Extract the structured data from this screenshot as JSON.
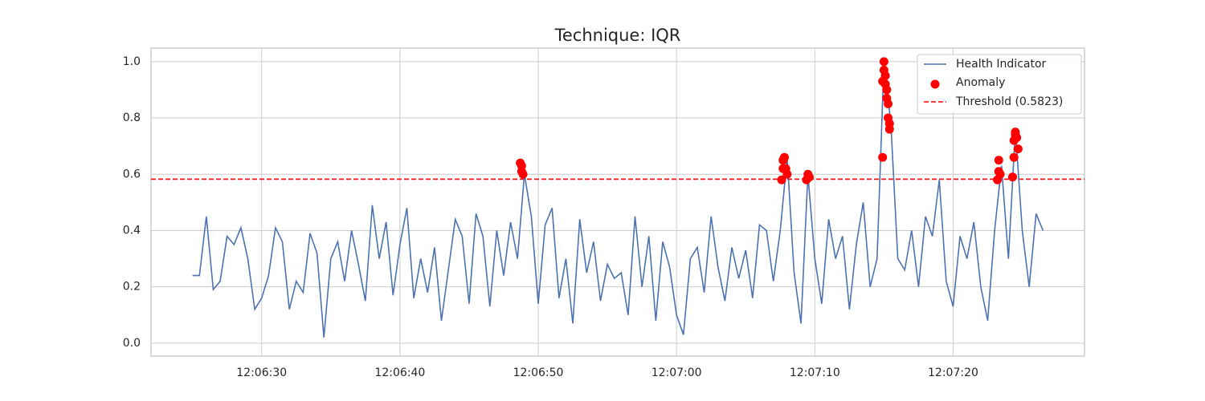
{
  "chart_data": {
    "type": "line",
    "title": "Technique: IQR",
    "xlim": [
      "12:06:22.0",
      "12:07:29.5"
    ],
    "xticks": [
      "12:06:30",
      "12:06:40",
      "12:06:50",
      "12:07:00",
      "12:07:10",
      "12:07:20"
    ],
    "ylim": [
      -0.046,
      1.048
    ],
    "yticks": [
      {
        "value": 0,
        "label": "0.0"
      },
      {
        "value": 0.2,
        "label": "0.2"
      },
      {
        "value": 0.4,
        "label": "0.4"
      },
      {
        "value": 0.6,
        "label": "0.6"
      },
      {
        "value": 0.8,
        "label": "0.8"
      },
      {
        "value": 1,
        "label": "1.0"
      }
    ],
    "grid": true,
    "legend": "upper right",
    "series": [
      {
        "name": "Health Indicator",
        "type": "line",
        "color": "#4c72b0",
        "x": [
          "12:06:25.0",
          "12:06:25.5",
          "12:06:26.0",
          "12:06:26.5",
          "12:06:27.0",
          "12:06:27.5",
          "12:06:28.0",
          "12:06:28.5",
          "12:06:29.0",
          "12:06:29.5",
          "12:06:30.0",
          "12:06:30.5",
          "12:06:31.0",
          "12:06:31.5",
          "12:06:32.0",
          "12:06:32.5",
          "12:06:33.0",
          "12:06:33.5",
          "12:06:34.0",
          "12:06:34.5",
          "12:06:35.0",
          "12:06:35.5",
          "12:06:36.0",
          "12:06:36.5",
          "12:06:37.0",
          "12:06:37.5",
          "12:06:38.0",
          "12:06:38.5",
          "12:06:39.0",
          "12:06:39.5",
          "12:06:40.0",
          "12:06:40.5",
          "12:06:41.0",
          "12:06:41.5",
          "12:06:42.0",
          "12:06:42.5",
          "12:06:43.0",
          "12:06:43.5",
          "12:06:44.0",
          "12:06:44.5",
          "12:06:45.0",
          "12:06:45.5",
          "12:06:46.0",
          "12:06:46.5",
          "12:06:47.0",
          "12:06:47.5",
          "12:06:48.0",
          "12:06:48.5",
          "12:06:49.0",
          "12:06:49.5",
          "12:06:50.0",
          "12:06:50.5",
          "12:06:51.0",
          "12:06:51.5",
          "12:06:52.0",
          "12:06:52.5",
          "12:06:53.0",
          "12:06:53.5",
          "12:06:54.0",
          "12:06:54.5",
          "12:06:55.0",
          "12:06:55.5",
          "12:06:56.0",
          "12:06:56.5",
          "12:06:57.0",
          "12:06:57.5",
          "12:06:58.0",
          "12:06:58.5",
          "12:06:59.0",
          "12:06:59.5",
          "12:07:00.0",
          "12:07:00.5",
          "12:07:01.0",
          "12:07:01.5",
          "12:07:02.0",
          "12:07:02.5",
          "12:07:03.0",
          "12:07:03.5",
          "12:07:04.0",
          "12:07:04.5",
          "12:07:05.0",
          "12:07:05.5",
          "12:07:06.0",
          "12:07:06.5",
          "12:07:07.0",
          "12:07:07.5",
          "12:07:08.0",
          "12:07:08.5",
          "12:07:09.0",
          "12:07:09.5",
          "12:07:10.0",
          "12:07:10.5",
          "12:07:11.0",
          "12:07:11.5",
          "12:07:12.0",
          "12:07:12.5",
          "12:07:13.0",
          "12:07:13.5",
          "12:07:14.0",
          "12:07:14.5",
          "12:07:15.0",
          "12:07:15.5",
          "12:07:16.0",
          "12:07:16.5",
          "12:07:17.0",
          "12:07:17.5",
          "12:07:18.0",
          "12:07:18.5",
          "12:07:19.0",
          "12:07:19.5",
          "12:07:20.0",
          "12:07:20.5",
          "12:07:21.0",
          "12:07:21.5",
          "12:07:22.0",
          "12:07:22.5",
          "12:07:23.0",
          "12:07:23.5",
          "12:07:24.0",
          "12:07:24.5",
          "12:07:25.0",
          "12:07:25.5",
          "12:07:26.0",
          "12:07:26.5"
        ],
        "values": [
          0.24,
          0.24,
          0.45,
          0.19,
          0.22,
          0.38,
          0.35,
          0.41,
          0.3,
          0.12,
          0.16,
          0.24,
          0.41,
          0.36,
          0.12,
          0.22,
          0.18,
          0.39,
          0.32,
          0.02,
          0.3,
          0.36,
          0.22,
          0.4,
          0.28,
          0.15,
          0.49,
          0.3,
          0.43,
          0.17,
          0.35,
          0.48,
          0.16,
          0.3,
          0.18,
          0.34,
          0.08,
          0.26,
          0.44,
          0.38,
          0.14,
          0.46,
          0.38,
          0.13,
          0.4,
          0.24,
          0.43,
          0.3,
          0.6,
          0.45,
          0.14,
          0.42,
          0.48,
          0.16,
          0.3,
          0.07,
          0.44,
          0.25,
          0.36,
          0.15,
          0.28,
          0.23,
          0.25,
          0.1,
          0.45,
          0.2,
          0.38,
          0.08,
          0.36,
          0.27,
          0.1,
          0.03,
          0.3,
          0.34,
          0.18,
          0.45,
          0.27,
          0.15,
          0.34,
          0.23,
          0.33,
          0.16,
          0.42,
          0.4,
          0.22,
          0.4,
          0.66,
          0.25,
          0.07,
          0.6,
          0.3,
          0.14,
          0.44,
          0.3,
          0.38,
          0.12,
          0.35,
          0.5,
          0.2,
          0.3,
          1.0,
          0.78,
          0.3,
          0.26,
          0.4,
          0.2,
          0.45,
          0.38,
          0.58,
          0.22,
          0.13,
          0.38,
          0.3,
          0.43,
          0.2,
          0.08,
          0.4,
          0.63,
          0.3,
          0.76,
          0.4,
          0.2,
          0.46,
          0.4
        ]
      },
      {
        "name": "Anomaly",
        "type": "scatter",
        "color": "#ff0000",
        "x": [
          "12:06:48.7",
          "12:06:48.8",
          "12:06:48.8",
          "12:06:48.9",
          "12:07:07.6",
          "12:07:07.7",
          "12:07:07.7",
          "12:07:07.8",
          "12:07:07.9",
          "12:07:08.0",
          "12:07:09.4",
          "12:07:09.5",
          "12:07:09.6",
          "12:07:14.9",
          "12:07:14.9",
          "12:07:15.0",
          "12:07:15.0",
          "12:07:15.1",
          "12:07:15.1",
          "12:07:15.2",
          "12:07:15.2",
          "12:07:15.3",
          "12:07:15.3",
          "12:07:15.4",
          "12:07:15.4",
          "12:07:23.2",
          "12:07:23.3",
          "12:07:23.3",
          "12:07:23.4",
          "12:07:24.3",
          "12:07:24.4",
          "12:07:24.4",
          "12:07:24.5",
          "12:07:24.5",
          "12:07:24.6",
          "12:07:24.7"
        ],
        "values": [
          0.64,
          0.63,
          0.61,
          0.6,
          0.58,
          0.62,
          0.65,
          0.66,
          0.62,
          0.6,
          0.58,
          0.6,
          0.59,
          0.66,
          0.93,
          1.0,
          0.97,
          0.95,
          0.92,
          0.9,
          0.87,
          0.85,
          0.8,
          0.78,
          0.76,
          0.58,
          0.61,
          0.65,
          0.6,
          0.59,
          0.66,
          0.72,
          0.75,
          0.74,
          0.73,
          0.69
        ]
      }
    ],
    "threshold": {
      "name": "Threshold (0.5823)",
      "value": 0.5823,
      "color": "#ff0000"
    }
  }
}
